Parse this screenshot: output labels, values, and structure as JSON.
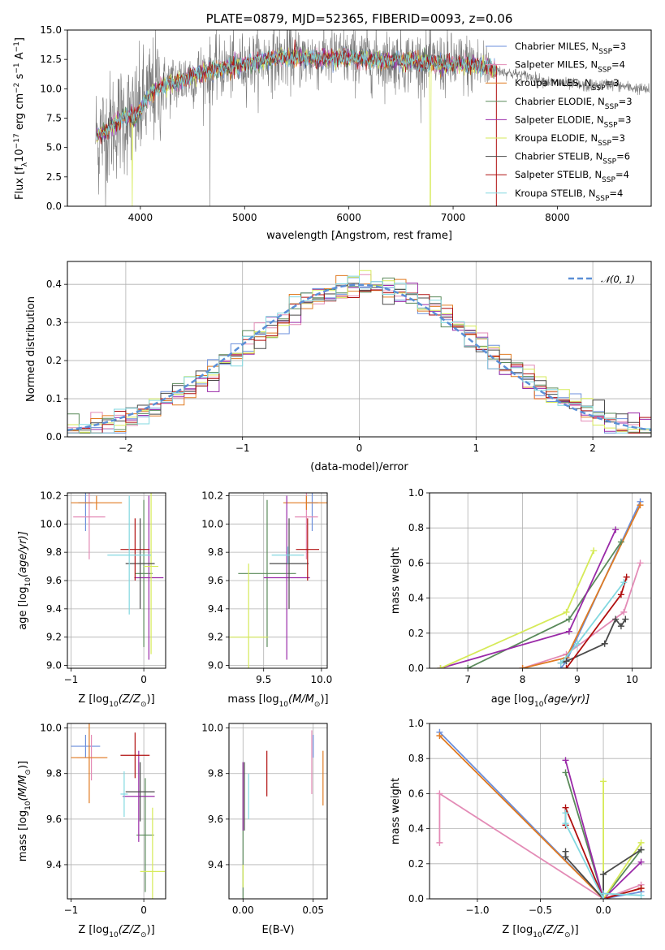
{
  "colors": {
    "chabrier_miles": "#6b8fdc",
    "salpeter_miles": "#e38bb6",
    "kroupa_miles": "#e07b22",
    "chabrier_elodie": "#5a8a5a",
    "salpeter_elodie": "#9a2aa8",
    "kroupa_elodie": "#d6ea58",
    "chabrier_stelib": "#4a4a4a",
    "salpeter_stelib": "#b01010",
    "kroupa_stelib": "#82d8e0",
    "data_spectrum": "#7a7a7a",
    "gaussian": "#5b8fd6"
  },
  "chart_data": [
    {
      "id": "spectrum",
      "type": "line",
      "title": "PLATE=0879, MJD=52365, FIBERID=0093, z=0.06",
      "xlabel": "wavelength [Angstrom, rest frame]",
      "ylabel": "Flux [f",
      "ylabel_parts": [
        "Flux [f",
        "λ",
        "10",
        "−17",
        " erg cm",
        "−2",
        " s",
        "−1",
        " A",
        "−1",
        "]"
      ],
      "xlim": [
        3300,
        8900
      ],
      "ylim": [
        0,
        15
      ],
      "xticks": [
        "4000",
        "5000",
        "6000",
        "7000",
        "8000"
      ],
      "yticks": [
        "0.0",
        "2.5",
        "5.0",
        "7.5",
        "10.0",
        "12.5",
        "15.0"
      ],
      "legend_position": "upper right",
      "legend": [
        {
          "label": "Chabrier MILES, N",
          "sub": "SSP",
          "val": "=3"
        },
        {
          "label": "Salpeter MILES, N",
          "sub": "SSP",
          "val": "=4"
        },
        {
          "label": "Kroupa MILES, N",
          "sub": "SSP",
          "val": "=3"
        },
        {
          "label": "Chabrier ELODIE, N",
          "sub": "SSP",
          "val": "=3"
        },
        {
          "label": "Salpeter ELODIE, N",
          "sub": "SSP",
          "val": "=3"
        },
        {
          "label": "Kroupa ELODIE, N",
          "sub": "SSP",
          "val": "=3"
        },
        {
          "label": "Chabrier STELIB, N",
          "sub": "SSP",
          "val": "=6"
        },
        {
          "label": "Salpeter STELIB, N",
          "sub": "SSP",
          "val": "=4"
        },
        {
          "label": "Kroupa STELIB, N",
          "sub": "SSP",
          "val": "=4"
        }
      ],
      "continuum": {
        "x": [
          3550,
          3650,
          3750,
          3850,
          3950,
          4050,
          4150,
          4250,
          4350,
          4500,
          4700,
          4900,
          5100,
          5300,
          5500,
          5700,
          5900,
          6100,
          6300,
          6500,
          6700,
          6900,
          7100,
          7300,
          7500,
          7700,
          7900,
          8100,
          8300,
          8500,
          8700,
          8880
        ],
        "y": [
          6.0,
          6.2,
          7.0,
          7.6,
          7.5,
          9.0,
          10.0,
          10.3,
          10.6,
          11.1,
          11.6,
          11.9,
          12.3,
          12.6,
          12.7,
          12.6,
          12.7,
          12.6,
          12.4,
          12.4,
          12.3,
          12.1,
          12.1,
          11.9,
          11.4,
          11.1,
          10.6,
          10.4,
          10.2,
          10.4,
          10.1,
          9.9
        ]
      }
    },
    {
      "id": "residuals",
      "type": "step",
      "xlabel": "(data-model)/error",
      "ylabel": "Normed distribution",
      "xlim": [
        -2.5,
        2.5
      ],
      "ylim": [
        0,
        0.46
      ],
      "xticks": [
        "−2",
        "−1",
        "0",
        "1",
        "2"
      ],
      "yticks": [
        "0.0",
        "0.1",
        "0.2",
        "0.3",
        "0.4"
      ],
      "legend": "𝒩(0, 1)",
      "legend_position": "upper right",
      "bin_width": 0.1
    },
    {
      "id": "age_vs_Z",
      "type": "errorbar",
      "xlabel": "Z [log",
      "xlabel_parts": [
        "Z [log",
        "10",
        "(Z/Z",
        "⊙",
        ")]"
      ],
      "ylabel_parts": [
        "age  [log",
        "10",
        "(age/yr)]"
      ],
      "xlim": [
        -1.05,
        0.3
      ],
      "ylim": [
        8.98,
        10.22
      ],
      "xticks": [
        "−1",
        "0"
      ],
      "yticks": [
        "9.0",
        "9.2",
        "9.4",
        "9.6",
        "9.8",
        "10.0",
        "10.2"
      ],
      "points": [
        {
          "model": "chabrier_miles",
          "x": -0.8,
          "xerr": 0.1,
          "y": 10.15,
          "yerr": 0.2
        },
        {
          "model": "salpeter_miles",
          "x": -0.75,
          "xerr": 0.22,
          "y": 10.05,
          "yerr": 0.3
        },
        {
          "model": "kroupa_miles",
          "x": -0.65,
          "xerr": 0.35,
          "y": 10.15,
          "yerr": 0.05
        },
        {
          "model": "chabrier_elodie",
          "x": 0.0,
          "xerr": 0.12,
          "y": 9.65,
          "yerr": 0.52
        },
        {
          "model": "salpeter_elodie",
          "x": 0.07,
          "xerr": 0.2,
          "y": 9.62,
          "yerr": 0.58
        },
        {
          "model": "kroupa_elodie",
          "x": 0.1,
          "xerr": 0.1,
          "y": 9.7,
          "yerr": 0.62
        },
        {
          "model": "chabrier_stelib",
          "x": -0.05,
          "xerr": 0.2,
          "y": 9.72,
          "yerr": 0.32
        },
        {
          "model": "salpeter_stelib",
          "x": -0.12,
          "xerr": 0.2,
          "y": 9.82,
          "yerr": 0.22
        },
        {
          "model": "kroupa_stelib",
          "x": -0.2,
          "xerr": 0.3,
          "y": 9.78,
          "yerr": 0.42
        }
      ]
    },
    {
      "id": "age_vs_mass",
      "type": "errorbar",
      "xlabel_parts": [
        "mass [log",
        "10",
        "(M/M",
        "⊙",
        ")]"
      ],
      "xlim": [
        9.2,
        10.05
      ],
      "ylim": [
        8.98,
        10.22
      ],
      "xticks": [
        "9.5",
        "10.0"
      ],
      "yticks": [
        "9.0",
        "9.2",
        "9.4",
        "9.6",
        "9.8",
        "10.0",
        "10.2"
      ],
      "points": [
        {
          "model": "chabrier_miles",
          "x": 9.92,
          "xerr": 0.05,
          "y": 10.15,
          "yerr": 0.2
        },
        {
          "model": "salpeter_miles",
          "x": 9.87,
          "xerr": 0.1,
          "y": 10.05,
          "yerr": 0.3
        },
        {
          "model": "kroupa_miles",
          "x": 9.87,
          "xerr": 0.2,
          "y": 10.15,
          "yerr": 0.05
        },
        {
          "model": "chabrier_elodie",
          "x": 9.53,
          "xerr": 0.25,
          "y": 9.65,
          "yerr": 0.52
        },
        {
          "model": "salpeter_elodie",
          "x": 9.7,
          "xerr": 0.2,
          "y": 9.62,
          "yerr": 0.58
        },
        {
          "model": "kroupa_elodie",
          "x": 9.37,
          "xerr": 0.17,
          "y": 9.2,
          "yerr": 0.52
        },
        {
          "model": "chabrier_stelib",
          "x": 9.72,
          "xerr": 0.17,
          "y": 9.72,
          "yerr": 0.32
        },
        {
          "model": "salpeter_stelib",
          "x": 9.88,
          "xerr": 0.1,
          "y": 9.82,
          "yerr": 0.22
        },
        {
          "model": "kroupa_stelib",
          "x": 9.71,
          "xerr": 0.14,
          "y": 9.78,
          "yerr": 0.06
        }
      ]
    },
    {
      "id": "mass_weight_vs_age",
      "type": "line",
      "xlabel_parts": [
        "age  [log",
        "10",
        "(age/yr)]"
      ],
      "ylabel": "mass weight",
      "xlim": [
        6.3,
        10.35
      ],
      "ylim": [
        0,
        1.0
      ],
      "xticks": [
        "7",
        "8",
        "9",
        "10"
      ],
      "yticks": [
        "0.0",
        "0.2",
        "0.4",
        "0.6",
        "0.8",
        "1.0"
      ],
      "series": [
        {
          "model": "chabrier_miles",
          "points": [
            [
              8.7,
              0.0
            ],
            [
              8.8,
              0.04
            ],
            [
              10.15,
              0.95
            ]
          ]
        },
        {
          "model": "salpeter_miles",
          "points": [
            [
              8.0,
              0.0
            ],
            [
              8.8,
              0.08
            ],
            [
              9.85,
              0.32
            ],
            [
              10.15,
              0.6
            ]
          ]
        },
        {
          "model": "kroupa_miles",
          "points": [
            [
              8.0,
              0.0
            ],
            [
              8.8,
              0.06
            ],
            [
              10.15,
              0.93
            ]
          ]
        },
        {
          "model": "chabrier_elodie",
          "points": [
            [
              7.0,
              0.0
            ],
            [
              8.85,
              0.28
            ],
            [
              9.8,
              0.72
            ]
          ]
        },
        {
          "model": "salpeter_elodie",
          "points": [
            [
              6.5,
              0.0
            ],
            [
              8.85,
              0.21
            ],
            [
              9.7,
              0.79
            ]
          ]
        },
        {
          "model": "kroupa_elodie",
          "points": [
            [
              6.5,
              0.0
            ],
            [
              8.8,
              0.32
            ],
            [
              9.3,
              0.67
            ]
          ]
        },
        {
          "model": "chabrier_stelib",
          "points": [
            [
              8.7,
              0.03
            ],
            [
              8.8,
              0.04
            ],
            [
              9.5,
              0.14
            ],
            [
              9.7,
              0.28
            ],
            [
              9.8,
              0.24
            ],
            [
              9.88,
              0.28
            ]
          ]
        },
        {
          "model": "salpeter_stelib",
          "points": [
            [
              8.8,
              0.0
            ],
            [
              9.8,
              0.42
            ],
            [
              9.9,
              0.52
            ]
          ]
        },
        {
          "model": "kroupa_stelib",
          "points": [
            [
              8.7,
              0.03
            ],
            [
              9.0,
              0.14
            ],
            [
              9.85,
              0.49
            ]
          ]
        }
      ]
    },
    {
      "id": "mass_vs_Z",
      "type": "errorbar",
      "xlabel_parts": [
        "Z [log",
        "10",
        "(Z/Z",
        "⊙",
        ")]"
      ],
      "ylabel_parts": [
        "mass [log",
        "10",
        "(M/M",
        "⊙",
        ")]"
      ],
      "xlim": [
        -1.05,
        0.3
      ],
      "ylim": [
        9.25,
        10.02
      ],
      "xticks": [
        "−1",
        "0"
      ],
      "yticks": [
        "9.4",
        "9.6",
        "9.8",
        "10.0"
      ],
      "points": [
        {
          "model": "chabrier_miles",
          "x": -0.8,
          "xerr": 0.2,
          "y": 9.92,
          "yerr": 0.05
        },
        {
          "model": "salpeter_miles",
          "x": -0.72,
          "xerr": 0.2,
          "y": 9.87,
          "yerr": 0.1
        },
        {
          "model": "kroupa_miles",
          "x": -0.75,
          "xerr": 0.25,
          "y": 9.87,
          "yerr": 0.2
        },
        {
          "model": "chabrier_elodie",
          "x": 0.02,
          "xerr": 0.12,
          "y": 9.53,
          "yerr": 0.25
        },
        {
          "model": "salpeter_elodie",
          "x": -0.07,
          "xerr": 0.22,
          "y": 9.7,
          "yerr": 0.2
        },
        {
          "model": "kroupa_elodie",
          "x": 0.12,
          "xerr": 0.17,
          "y": 9.37,
          "yerr": 0.28
        },
        {
          "model": "chabrier_stelib",
          "x": -0.05,
          "xerr": 0.2,
          "y": 9.72,
          "yerr": 0.13
        },
        {
          "model": "salpeter_stelib",
          "x": -0.12,
          "xerr": 0.2,
          "y": 9.88,
          "yerr": 0.1
        },
        {
          "model": "kroupa_stelib",
          "x": -0.27,
          "xerr": 0.05,
          "y": 9.71,
          "yerr": 0.1
        }
      ]
    },
    {
      "id": "mass_vs_ebv",
      "type": "errorbar",
      "xlabel": "E(B-V)",
      "xlim": [
        -0.01,
        0.06
      ],
      "ylim": [
        9.25,
        10.02
      ],
      "xticks": [
        "0.00",
        "0.05"
      ],
      "yticks": [
        "9.4",
        "9.6",
        "9.8",
        "10.0"
      ],
      "points": [
        {
          "model": "chabrier_miles",
          "x": 0.05,
          "y": 9.92,
          "yerr": 0.05
        },
        {
          "model": "salpeter_miles",
          "x": 0.049,
          "y": 9.85,
          "yerr": 0.14
        },
        {
          "model": "kroupa_miles",
          "x": 0.057,
          "y": 9.78,
          "yerr": 0.12
        },
        {
          "model": "chabrier_elodie",
          "x": 0.0,
          "y": 9.55,
          "yerr": 0.3
        },
        {
          "model": "salpeter_elodie",
          "x": 0.0,
          "y": 9.7,
          "yerr": 0.15
        },
        {
          "model": "kroupa_elodie",
          "x": 0.0,
          "y": 9.35,
          "yerr": 0.05
        },
        {
          "model": "chabrier_stelib",
          "x": 0.001,
          "y": 9.7,
          "yerr": 0.15
        },
        {
          "model": "salpeter_stelib",
          "x": 0.017,
          "y": 9.8,
          "yerr": 0.1
        },
        {
          "model": "kroupa_stelib",
          "x": 0.004,
          "y": 9.7,
          "yerr": 0.1
        }
      ]
    },
    {
      "id": "mass_weight_vs_Z",
      "type": "line",
      "xlabel_parts": [
        "Z [log",
        "10",
        "(Z/Z",
        "⊙",
        ")]"
      ],
      "ylabel": "mass weight",
      "xlim": [
        -1.38,
        0.38
      ],
      "ylim": [
        0,
        1.0
      ],
      "xticks": [
        "−1.0",
        "−0.5",
        "0.0"
      ],
      "yticks": [
        "0.0",
        "0.2",
        "0.4",
        "0.6",
        "0.8",
        "1.0"
      ],
      "series": [
        {
          "model": "chabrier_miles",
          "points": [
            [
              -1.3,
              0.95
            ],
            [
              0.0,
              0.0
            ],
            [
              0.3,
              0.04
            ]
          ]
        },
        {
          "model": "salpeter_miles",
          "points": [
            [
              -1.3,
              0.32
            ],
            [
              -1.3,
              0.6
            ],
            [
              0.0,
              0.0
            ],
            [
              0.3,
              0.08
            ]
          ]
        },
        {
          "model": "kroupa_miles",
          "points": [
            [
              -1.3,
              0.93
            ],
            [
              0.0,
              0.0
            ],
            [
              0.3,
              0.06
            ]
          ]
        },
        {
          "model": "chabrier_elodie",
          "points": [
            [
              -0.3,
              0.72
            ],
            [
              0.0,
              0.0
            ],
            [
              0.3,
              0.28
            ]
          ]
        },
        {
          "model": "salpeter_elodie",
          "points": [
            [
              -0.3,
              0.79
            ],
            [
              0.0,
              0.0
            ],
            [
              0.3,
              0.21
            ]
          ]
        },
        {
          "model": "kroupa_elodie",
          "points": [
            [
              0.0,
              0.67
            ],
            [
              0.0,
              0.0
            ],
            [
              0.3,
              0.32
            ]
          ]
        },
        {
          "model": "chabrier_stelib",
          "points": [
            [
              -0.3,
              0.27
            ],
            [
              -0.3,
              0.24
            ],
            [
              0.0,
              0.0
            ],
            [
              0.0,
              0.14
            ],
            [
              0.3,
              0.28
            ]
          ]
        },
        {
          "model": "salpeter_stelib",
          "points": [
            [
              -0.3,
              0.42
            ],
            [
              -0.3,
              0.52
            ],
            [
              0.0,
              0.0
            ],
            [
              0.3,
              0.06
            ]
          ]
        },
        {
          "model": "kroupa_stelib",
          "points": [
            [
              -0.3,
              0.49
            ],
            [
              -0.3,
              0.43
            ],
            [
              0.0,
              0.0
            ],
            [
              0.0,
              0.03
            ],
            [
              0.3,
              0.02
            ]
          ]
        }
      ]
    }
  ]
}
